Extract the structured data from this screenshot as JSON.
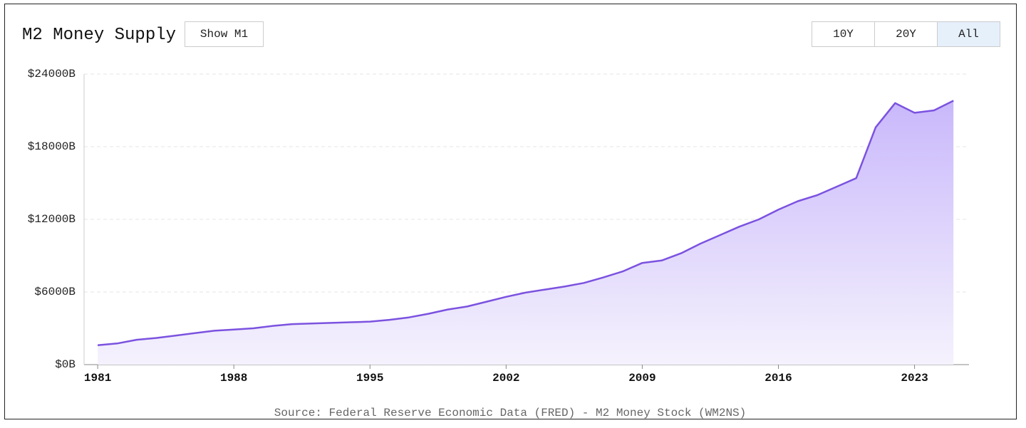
{
  "toolbar": {
    "toggle": "Show M1",
    "ranges": [
      "10Y",
      "20Y",
      "All"
    ],
    "active_range": 2
  },
  "chart_data": {
    "type": "area",
    "title": "M2 Money Supply",
    "source": "Source: Federal Reserve Economic Data (FRED) - M2 Money Stock (WM2NS)",
    "x": [
      1981,
      1982,
      1983,
      1984,
      1985,
      1986,
      1987,
      1988,
      1989,
      1990,
      1991,
      1992,
      1993,
      1994,
      1995,
      1996,
      1997,
      1998,
      1999,
      2000,
      2001,
      2002,
      2003,
      2004,
      2005,
      2006,
      2007,
      2008,
      2009,
      2010,
      2011,
      2012,
      2013,
      2014,
      2015,
      2016,
      2017,
      2018,
      2019,
      2020,
      2021,
      2022,
      2023,
      2024,
      2025
    ],
    "values": [
      1600,
      1750,
      2050,
      2200,
      2400,
      2600,
      2800,
      2900,
      3000,
      3200,
      3350,
      3400,
      3450,
      3500,
      3550,
      3700,
      3900,
      4200,
      4550,
      4800,
      5200,
      5600,
      5950,
      6200,
      6450,
      6750,
      7200,
      7700,
      8400,
      8600,
      9200,
      10000,
      10700,
      11400,
      12000,
      12800,
      13500,
      14000,
      14700,
      15400,
      19600,
      21600,
      20800,
      21000,
      21800
    ],
    "color": "#7b52e0",
    "xlim": [
      1980.3,
      2025.8
    ],
    "xticks": [
      1981,
      1988,
      1995,
      2002,
      2009,
      2016,
      2023
    ],
    "ylim": [
      0,
      24000
    ],
    "yticks": [
      {
        "value": 0,
        "label": "$0B"
      },
      {
        "value": 6000,
        "label": "$6000B"
      },
      {
        "value": 12000,
        "label": "$12000B"
      },
      {
        "value": 18000,
        "label": "$18000B"
      },
      {
        "value": 24000,
        "label": "$24000B"
      }
    ],
    "grid": true
  }
}
